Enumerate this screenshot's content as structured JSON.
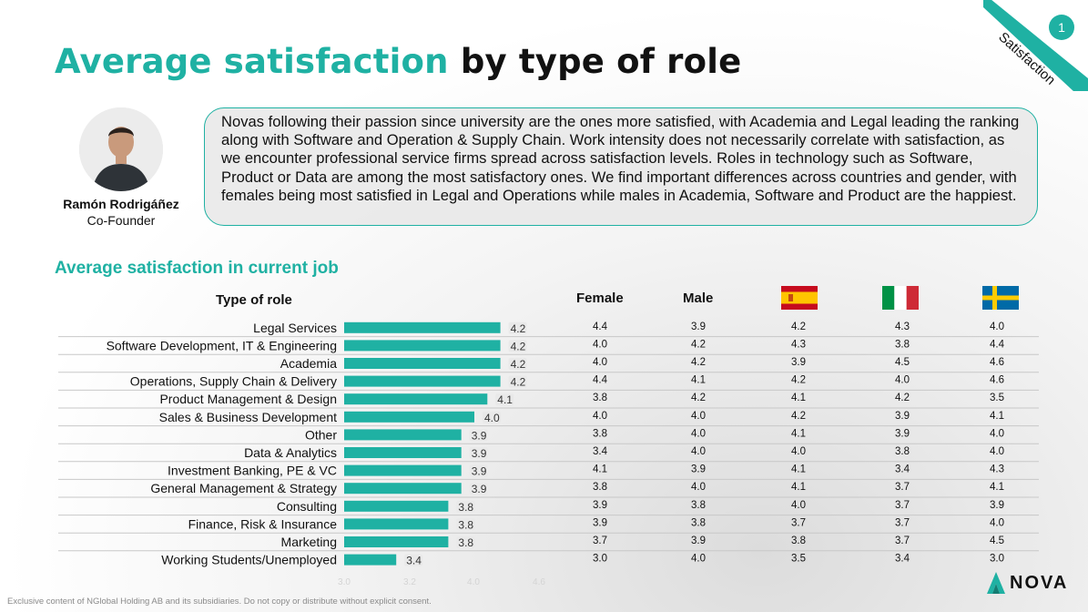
{
  "header": {
    "title_accent": "Average satisfaction",
    "title_rest": "by type of role",
    "page_number": "1",
    "section_tag": "Satisfaction"
  },
  "author": {
    "name": "Ramón Rodrigáñez",
    "role": "Co-Founder"
  },
  "quote": "Novas following their passion since university are the ones more satisfied, with Academia and Legal leading the ranking along with Software and Operation & Supply Chain. Work intensity does not necessarily correlate with satisfaction, as we encounter professional service firms spread across satisfaction levels. Roles in technology such as Software, Product or Data are among the most satisfactory ones. We find important differences across countries and gender, with females being most satisfied in Legal and Operations while males in Academia, Software and Product are the happiest.",
  "section_title": "Average satisfaction in current job",
  "columns": {
    "role": "Type of role",
    "female": "Female",
    "male": "Male"
  },
  "flags": [
    {
      "icon": "spain-flag-icon"
    },
    {
      "icon": "italy-flag-icon"
    },
    {
      "icon": "sweden-flag-icon"
    }
  ],
  "colors": {
    "accent": "#1fb1a3",
    "text": "#111111",
    "rule": "#c8c8c8"
  },
  "chart_data": {
    "type": "bar",
    "orientation": "horizontal",
    "categories": [
      "Legal Services",
      "Software Development, IT & Engineering",
      "Academia",
      "Operations, Supply Chain & Delivery",
      "Product Management & Design",
      "Sales & Business Development",
      "Other",
      "Data & Analytics",
      "Investment Banking, PE & VC",
      "General Management & Strategy",
      "Consulting",
      "Finance, Risk & Insurance",
      "Marketing",
      "Working Students/Unemployed"
    ],
    "values": [
      4.2,
      4.2,
      4.2,
      4.2,
      4.1,
      4.0,
      3.9,
      3.9,
      3.9,
      3.9,
      3.8,
      3.8,
      3.8,
      3.4
    ],
    "value_labels": [
      "4.2",
      "4.2",
      "4.2",
      "4.2",
      "4.1",
      "4.0",
      "3.9",
      "3.9",
      "3.9",
      "3.9",
      "3.8",
      "3.8",
      "3.8",
      "3.4"
    ],
    "xlim": [
      3.0,
      4.6
    ],
    "x_ticks": [
      "3.0",
      "3.2",
      "4.0",
      "4.6"
    ],
    "table": {
      "female": [
        "4.4",
        "4.0",
        "4.0",
        "4.4",
        "3.8",
        "4.0",
        "3.8",
        "3.4",
        "4.1",
        "3.8",
        "3.9",
        "3.9",
        "3.7",
        "3.0"
      ],
      "male": [
        "3.9",
        "4.2",
        "4.2",
        "4.1",
        "4.2",
        "4.0",
        "4.0",
        "4.0",
        "3.9",
        "4.0",
        "3.8",
        "3.8",
        "3.9",
        "4.0"
      ],
      "spain": [
        "4.2",
        "4.3",
        "3.9",
        "4.2",
        "4.1",
        "4.2",
        "4.1",
        "4.0",
        "4.1",
        "4.1",
        "4.0",
        "3.7",
        "3.8",
        "3.5"
      ],
      "italy": [
        "4.3",
        "3.8",
        "4.5",
        "4.0",
        "4.2",
        "3.9",
        "3.9",
        "3.8",
        "3.4",
        "3.7",
        "3.7",
        "3.7",
        "3.7",
        "3.4"
      ],
      "sweden": [
        "4.0",
        "4.4",
        "4.6",
        "4.6",
        "3.5",
        "4.1",
        "4.0",
        "4.0",
        "4.3",
        "4.1",
        "3.9",
        "4.0",
        "4.5",
        "3.0"
      ]
    }
  },
  "footer": {
    "disclaimer": "Exclusive content of NGlobal Holding AB and its subsidiaries. Do not copy or distribute without explicit consent.",
    "logo_text": "NOVA"
  }
}
